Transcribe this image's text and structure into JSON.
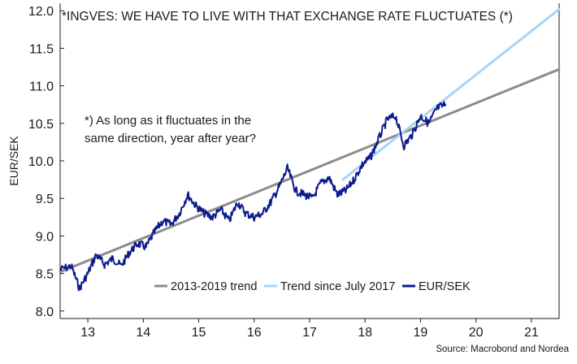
{
  "chart_data": {
    "type": "line",
    "title": "*INGVES: WE HAVE TO LIVE WITH THAT EXCHANGE RATE FLUCTUATES (*)",
    "annotation": [
      "*) As long as it fluctuates in the",
      "same direction, year after year?"
    ],
    "ylabel": "EUR/SEK",
    "xlabel": "",
    "source": "Source: Macrobond and Nordea",
    "xlim": [
      2012.5,
      2021.5
    ],
    "ylim": [
      7.9,
      12.1
    ],
    "yticks": [
      "12.0",
      "11.5",
      "11.0",
      "10.5",
      "10.0",
      "9.5",
      "9.0",
      "8.5",
      "8.0"
    ],
    "xticks": [
      "13",
      "14",
      "15",
      "16",
      "17",
      "18",
      "19",
      "20",
      "21"
    ],
    "legend_position": "bottom-right",
    "grid": false,
    "colors": {
      "trend_2013_2019": "#8c8c8c",
      "trend_since_july_2017": "#a8d4f5",
      "eurSek": "#0c1a8c"
    },
    "series": [
      {
        "name": "2013-2019 trend",
        "style": "line",
        "x": [
          2012.5,
          2021.5
        ],
        "y": [
          8.52,
          11.22
        ]
      },
      {
        "name": "Trend since July 2017",
        "style": "line",
        "x": [
          2017.6,
          2021.5
        ],
        "y": [
          9.75,
          12.02
        ]
      },
      {
        "name": "EUR/SEK",
        "style": "line",
        "x": [
          2012.5,
          2012.7,
          2012.85,
          2013.0,
          2013.15,
          2013.3,
          2013.45,
          2013.6,
          2013.75,
          2013.9,
          2014.05,
          2014.2,
          2014.35,
          2014.5,
          2014.65,
          2014.8,
          2014.95,
          2015.1,
          2015.25,
          2015.4,
          2015.55,
          2015.7,
          2015.85,
          2016.0,
          2016.15,
          2016.3,
          2016.45,
          2016.6,
          2016.75,
          2016.9,
          2017.05,
          2017.2,
          2017.35,
          2017.5,
          2017.65,
          2017.8,
          2017.95,
          2018.1,
          2018.25,
          2018.4,
          2018.55,
          2018.7,
          2018.85,
          2019.0,
          2019.15,
          2019.3,
          2019.45
        ],
        "y": [
          8.55,
          8.6,
          8.3,
          8.5,
          8.75,
          8.62,
          8.7,
          8.6,
          8.78,
          8.9,
          8.85,
          9.05,
          9.2,
          9.15,
          9.3,
          9.55,
          9.4,
          9.3,
          9.25,
          9.35,
          9.2,
          9.45,
          9.3,
          9.25,
          9.3,
          9.45,
          9.65,
          9.9,
          9.6,
          9.55,
          9.5,
          9.7,
          9.78,
          9.55,
          9.6,
          9.75,
          9.95,
          10.05,
          10.3,
          10.55,
          10.6,
          10.2,
          10.35,
          10.6,
          10.5,
          10.7,
          10.75
        ]
      }
    ]
  }
}
